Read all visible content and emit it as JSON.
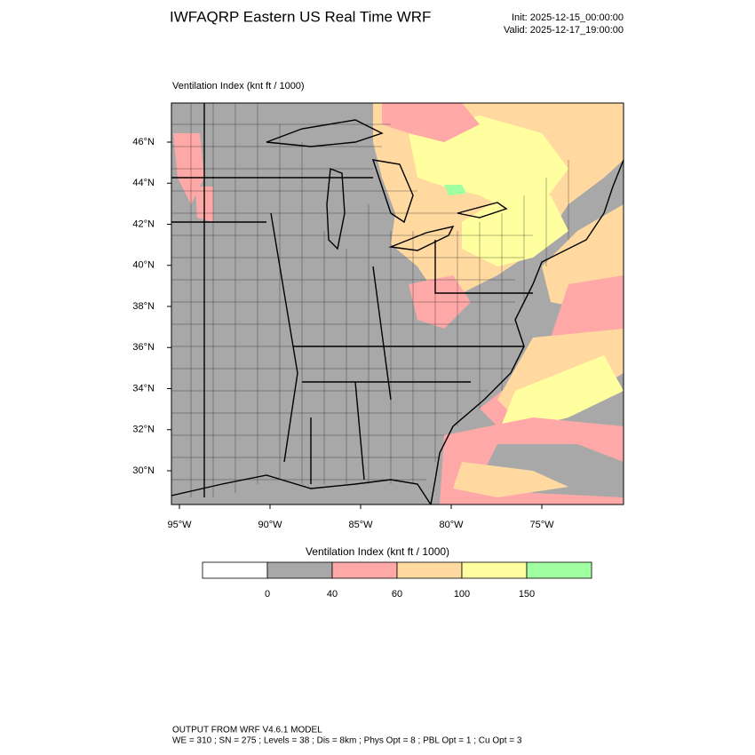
{
  "header": {
    "title": "IWFAQRP Eastern US Real Time WRF",
    "init": "Init: 2025-12-15_00:00:00",
    "valid": "Valid: 2025-12-17_19:00:00"
  },
  "map": {
    "field_label": "Ventilation Index   (knt ft / 1000)",
    "lat_labels": [
      "46°N",
      "44°N",
      "42°N",
      "40°N",
      "38°N",
      "36°N",
      "34°N",
      "32°N",
      "30°N"
    ],
    "lon_labels": [
      "95°W",
      "90°W",
      "85°W",
      "80°W",
      "75°W"
    ]
  },
  "colorbar": {
    "title": "Ventilation Index  (knt ft / 1000)",
    "levels": [
      0,
      40,
      60,
      100,
      150
    ],
    "colors": [
      "#ffffff",
      "#a8a8a8",
      "#ffa8a8",
      "#ffd9a0",
      "#ffff9f",
      "#a0ffa0"
    ]
  },
  "footer": {
    "line1": "OUTPUT FROM WRF V4.6.1 MODEL",
    "line2": "WE = 310 ; SN = 275 ; Levels = 38 ; Dis = 8km ; Phys Opt = 8 ; PBL Opt = 1 ; Cu Opt = 3"
  }
}
